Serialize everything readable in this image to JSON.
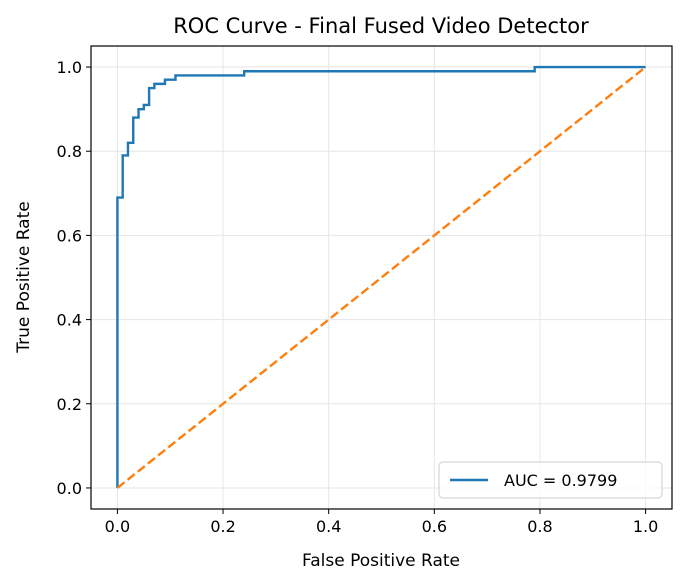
{
  "chart_data": {
    "type": "line",
    "title": "ROC Curve - Final Fused Video Detector",
    "xlabel": "False Positive Rate",
    "ylabel": "True Positive Rate",
    "xlim": [
      -0.05,
      1.05
    ],
    "ylim": [
      -0.05,
      1.05
    ],
    "xticks": [
      0.0,
      0.2,
      0.4,
      0.6,
      0.8,
      1.0
    ],
    "yticks": [
      0.0,
      0.2,
      0.4,
      0.6,
      0.8,
      1.0
    ],
    "xtick_labels": [
      "0.0",
      "0.2",
      "0.4",
      "0.6",
      "0.8",
      "1.0"
    ],
    "ytick_labels": [
      "0.0",
      "0.2",
      "0.4",
      "0.6",
      "0.8",
      "1.0"
    ],
    "grid": true,
    "legend_position": "lower-right",
    "series": [
      {
        "name": "AUC = 0.9799",
        "color": "#1f77b4",
        "style": "solid-step",
        "x": [
          0.0,
          0.0,
          0.01,
          0.01,
          0.02,
          0.02,
          0.03,
          0.03,
          0.04,
          0.04,
          0.05,
          0.05,
          0.06,
          0.06,
          0.07,
          0.07,
          0.08,
          0.08,
          0.09,
          0.09,
          0.11,
          0.11,
          0.24,
          0.24,
          0.79,
          0.79,
          1.0
        ],
        "y": [
          0.0,
          0.69,
          0.69,
          0.79,
          0.79,
          0.82,
          0.82,
          0.88,
          0.88,
          0.9,
          0.9,
          0.91,
          0.91,
          0.95,
          0.95,
          0.96,
          0.96,
          0.96,
          0.96,
          0.97,
          0.97,
          0.98,
          0.98,
          0.99,
          0.99,
          1.0,
          1.0
        ]
      },
      {
        "name": "",
        "color": "#ff7f0e",
        "style": "dashed",
        "x": [
          0.0,
          1.0
        ],
        "y": [
          0.0,
          1.0
        ]
      }
    ]
  }
}
